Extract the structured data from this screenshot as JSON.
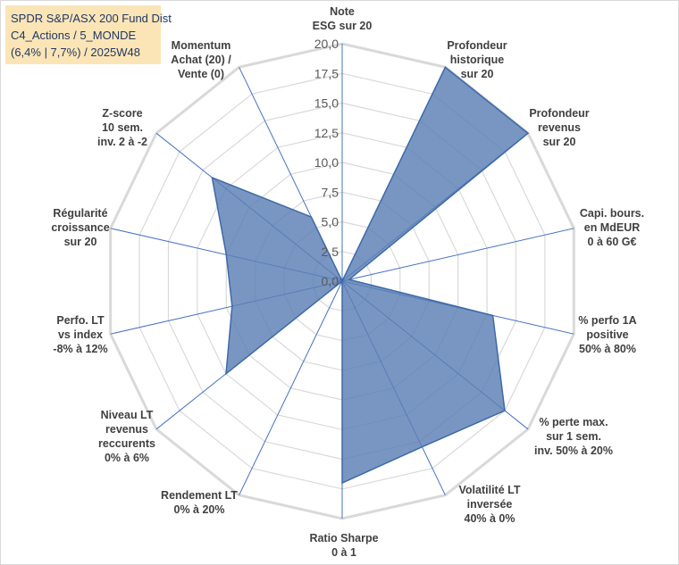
{
  "title_lines": [
    "SPDR S&P/ASX 200 Fund Dist",
    "C4_Actions / 5_MONDE",
    "(6,4% | 7,7%) / 2025W48"
  ],
  "chart_data": {
    "type": "radar",
    "axes": [
      {
        "label": [
          "Note",
          "ESG sur 20"
        ],
        "value": 0
      },
      {
        "label": [
          "Profondeur",
          "historique",
          "sur 20"
        ],
        "value": 20
      },
      {
        "label": [
          "Profondeur",
          "revenus",
          "sur 20"
        ],
        "value": 20
      },
      {
        "label": [
          "Capi. bours.",
          "en MdEUR",
          "0 à 60 G€"
        ],
        "value": 0.6
      },
      {
        "label": [
          "% perfo 1A",
          "positive",
          "50% à 80%"
        ],
        "value": 13
      },
      {
        "label": [
          "% perte max.",
          "sur 1 sem.",
          "inv. 50% à 20%"
        ],
        "value": 17.5
      },
      {
        "label": [
          "Volatilité LT",
          "inversée",
          "40% à 0%"
        ],
        "value": 15.5
      },
      {
        "label": [
          "Ratio Sharpe",
          "0 à 1"
        ],
        "value": 17
      },
      {
        "label": [
          "Rendement LT",
          "0% à 20%"
        ],
        "value": 0
      },
      {
        "label": [
          "Niveau LT",
          "revenus",
          "reccurents",
          "0% à 6%"
        ],
        "value": 12.5
      },
      {
        "label": [
          "Perfo. LT",
          "vs index",
          "-8% à 12%"
        ],
        "value": 9.5
      },
      {
        "label": [
          "Régularité",
          "croissance",
          "sur 20"
        ],
        "value": 10
      },
      {
        "label": [
          "Z-score",
          "10 sem.",
          "inv. 2 à -2"
        ],
        "value": 14
      },
      {
        "label": [
          "Momentum",
          "Achat (20) /",
          "Vente (0)"
        ],
        "value": 6
      }
    ],
    "scale": {
      "min": 0,
      "max": 20,
      "step": 2.5,
      "tick_labels": [
        "0,0",
        "2,5",
        "5,0",
        "7,5",
        "10,0",
        "12,5",
        "15,0",
        "17,5",
        "20,0"
      ]
    },
    "colors": {
      "fill": "#5b7fb5",
      "stroke": "#3c6aa8",
      "spoke": "#4472c4",
      "grid": "#d9d9d9"
    }
  }
}
